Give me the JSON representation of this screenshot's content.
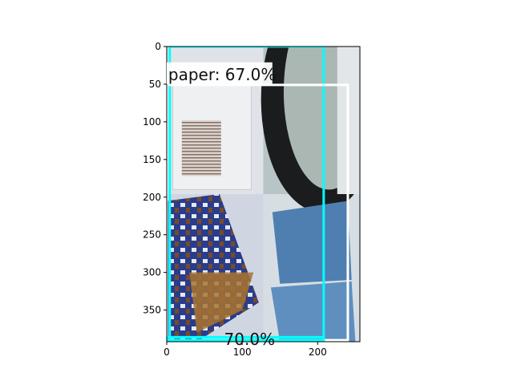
{
  "chart_data": {
    "type": "image",
    "title": "",
    "xlabel": "",
    "ylabel": "",
    "xlim": [
      0,
      256
    ],
    "ylim": [
      392,
      0
    ],
    "x_ticks": [
      0,
      100,
      200
    ],
    "y_ticks": [
      0,
      50,
      100,
      150,
      200,
      250,
      300,
      350
    ],
    "grid": false,
    "panels": [
      {
        "name": "paper-envelope-photo",
        "x0": 0,
        "y0": 0,
        "x1": 128,
        "y1": 196,
        "color": "#dfe3e8"
      },
      {
        "name": "bottle-photo",
        "x0": 128,
        "y0": 0,
        "x1": 256,
        "y1": 196,
        "color": "#c9d0d2"
      },
      {
        "name": "magazine-photo",
        "x0": 0,
        "y0": 196,
        "x1": 128,
        "y1": 392,
        "color": "#cfd6e2"
      },
      {
        "name": "blue-cardboard-photo",
        "x0": 128,
        "y0": 196,
        "x1": 256,
        "y1": 392,
        "color": "#d7dee3"
      }
    ],
    "detections": [
      {
        "label": "paper: 67.0%",
        "x0": 4,
        "y0": 0,
        "x1": 208,
        "y1": 390,
        "color": "#00ffff",
        "label_y": 21
      },
      {
        "label": "",
        "x0": 0,
        "y0": 51,
        "x1": 240,
        "y1": 390,
        "color": "#ffffff",
        "label_y": 51
      },
      {
        "label": "",
        "x0": 0,
        "y0": 386,
        "x1": 208,
        "y1": 390,
        "color": "#00ffff",
        "label_y": 386
      }
    ],
    "bottom_label_fragment": "70.0%"
  }
}
